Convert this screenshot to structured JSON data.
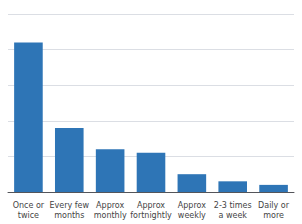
{
  "chart_data": {
    "type": "bar",
    "categories": [
      "Once or\ntwice",
      "Every few\nmonths",
      "Approx\nmonthly",
      "Approx\nfortnightly",
      "Approx\nweekly",
      "2-3 times\na week",
      "Daily or\nmore"
    ],
    "values": [
      42,
      18,
      12,
      11,
      5,
      3,
      2
    ],
    "color": "#2e75b6",
    "ylim": [
      0,
      50
    ],
    "yticks": [
      0,
      10,
      20,
      30,
      40,
      50
    ],
    "grid": true,
    "tick_labels": "x"
  }
}
